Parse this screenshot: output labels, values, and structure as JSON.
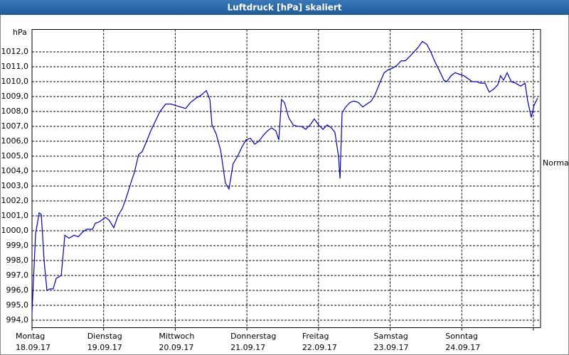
{
  "chart_data": {
    "type": "line",
    "title": "Luftdruck [hPa] skaliert",
    "y_unit": "hPa",
    "annotation": "Normal",
    "color": "#0000b4",
    "grid": true,
    "xlim": [
      0,
      170.4
    ],
    "xticks": [
      0,
      24,
      48,
      72,
      96,
      120,
      144,
      168
    ],
    "xtick_labels": [
      {
        "day": "Montag",
        "date": "18.09.17"
      },
      {
        "day": "Dienstag",
        "date": "19.09.17"
      },
      {
        "day": "Mittwoch",
        "date": "20.09.17"
      },
      {
        "day": "Donnerstag",
        "date": "21.09.17"
      },
      {
        "day": "Freitag",
        "date": "22.09.17"
      },
      {
        "day": "Samstag",
        "date": "23.09.17"
      },
      {
        "day": "Sonntag",
        "date": "24.09.17"
      }
    ],
    "ylim": [
      993.5,
      1013.5
    ],
    "yticks": [
      {
        "value": 994,
        "label": "994,0"
      },
      {
        "value": 995,
        "label": "995,0"
      },
      {
        "value": 996,
        "label": "996,0"
      },
      {
        "value": 997,
        "label": "997,0"
      },
      {
        "value": 998,
        "label": "998,0"
      },
      {
        "value": 999,
        "label": "999,0"
      },
      {
        "value": 1000,
        "label": "1000,0"
      },
      {
        "value": 1001,
        "label": "1001,0"
      },
      {
        "value": 1002,
        "label": "1002,0"
      },
      {
        "value": 1003,
        "label": "1003,0"
      },
      {
        "value": 1004,
        "label": "1004,0"
      },
      {
        "value": 1005,
        "label": "1005,0"
      },
      {
        "value": 1006,
        "label": "1006,0"
      },
      {
        "value": 1007,
        "label": "1007,0"
      },
      {
        "value": 1008,
        "label": "1008,0"
      },
      {
        "value": 1009,
        "label": "1009,0"
      },
      {
        "value": 1010,
        "label": "1010,0"
      },
      {
        "value": 1011,
        "label": "1011,0"
      },
      {
        "value": 1012,
        "label": "1012,0"
      }
    ],
    "x": [
      0,
      1.2,
      2.4,
      3.1,
      4.1,
      5.0,
      6.0,
      7.1,
      8.1,
      9.8,
      11.0,
      12.4,
      14.1,
      15.5,
      16.9,
      18.3,
      20.3,
      21.2,
      22.6,
      24.6,
      25.9,
      27.4,
      28.8,
      30.3,
      31.7,
      33.1,
      34.3,
      35.7,
      36.9,
      38.4,
      39.8,
      41.2,
      42.9,
      44.8,
      46.5,
      48.1,
      49.8,
      51.5,
      53.1,
      55.0,
      56.7,
      58.4,
      59.6,
      60.3,
      61.7,
      63.2,
      64.8,
      66.0,
      67.4,
      68.9,
      70.3,
      71.7,
      73.2,
      74.6,
      76.0,
      77.5,
      78.9,
      80.3,
      81.7,
      82.7,
      83.6,
      84.6,
      86.0,
      87.5,
      88.9,
      90.3,
      91.7,
      93.2,
      94.6,
      96.0,
      97.5,
      98.9,
      100.3,
      101.5,
      102.7,
      103.2,
      103.9,
      105.1,
      106.5,
      107.9,
      109.4,
      110.8,
      112.2,
      113.7,
      115.1,
      116.5,
      118.0,
      119.4,
      120.8,
      122.3,
      123.7,
      125.1,
      126.6,
      128.0,
      129.4,
      130.8,
      132.3,
      133.7,
      135.1,
      136.6,
      138.0,
      139.0,
      140.4,
      141.8,
      143.2,
      144.7,
      146.1,
      147.5,
      149.0,
      150.4,
      151.8,
      153.2,
      154.7,
      156.1,
      157.0,
      158.0,
      159.2,
      160.6,
      162.0,
      163.7,
      165.2,
      166.1,
      167.3,
      168.2,
      169.4
    ],
    "values": [
      994.5,
      999.8,
      1001.2,
      1001.1,
      997.9,
      996.0,
      996.1,
      996.1,
      996.8,
      997.0,
      999.7,
      999.5,
      999.7,
      999.6,
      999.9,
      1000.1,
      1000.1,
      1000.5,
      1000.6,
      1000.9,
      1000.7,
      1000.2,
      1001.0,
      1001.5,
      1002.3,
      1003.2,
      1003.9,
      1005.1,
      1005.3,
      1006.0,
      1006.7,
      1007.3,
      1008.0,
      1008.5,
      1008.5,
      1008.4,
      1008.3,
      1008.2,
      1008.6,
      1008.9,
      1009.1,
      1009.4,
      1008.8,
      1007.1,
      1006.5,
      1005.4,
      1003.2,
      1002.8,
      1004.5,
      1005.0,
      1005.6,
      1006.1,
      1006.2,
      1005.8,
      1006.0,
      1006.4,
      1006.7,
      1006.9,
      1006.7,
      1006.1,
      1008.8,
      1008.6,
      1007.6,
      1007.1,
      1007.0,
      1007.0,
      1006.8,
      1007.1,
      1007.5,
      1007.1,
      1006.8,
      1007.1,
      1006.9,
      1006.6,
      1005.0,
      1003.5,
      1007.9,
      1008.3,
      1008.6,
      1008.7,
      1008.6,
      1008.3,
      1008.5,
      1008.7,
      1009.2,
      1009.9,
      1010.6,
      1010.8,
      1010.9,
      1011.1,
      1011.4,
      1011.4,
      1011.7,
      1012.0,
      1012.3,
      1012.7,
      1012.5,
      1011.95,
      1011.3,
      1010.7,
      1010.1,
      1010.0,
      1010.4,
      1010.6,
      1010.5,
      1010.4,
      1010.2,
      1010.0,
      1010.0,
      1009.9,
      1009.9,
      1009.3,
      1009.5,
      1009.8,
      1010.4,
      1010.1,
      1010.6,
      1010.0,
      1009.9,
      1009.7,
      1009.9,
      1008.7,
      1007.6,
      1008.4,
      1008.9
    ]
  }
}
